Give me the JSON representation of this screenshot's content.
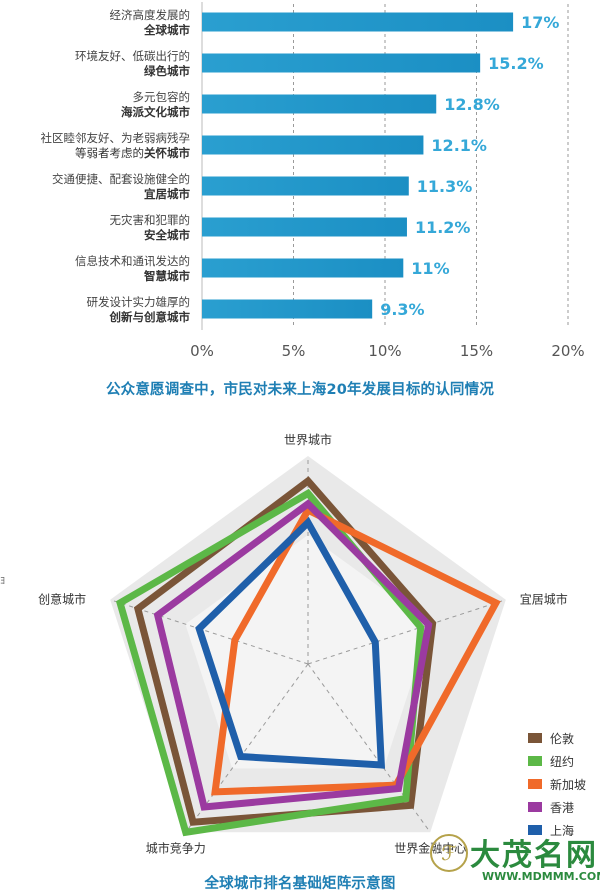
{
  "chart_data": [
    {
      "type": "bar",
      "orientation": "horizontal",
      "title": "公众意愿调查中，市民对未来上海20年发展目标的认同情况",
      "categories": [
        {
          "line1": "经济高度发展的",
          "line2": "全球城市"
        },
        {
          "line1": "环境友好、低碳出行的",
          "line2": "绿色城市"
        },
        {
          "line1": "多元包容的",
          "line2": "海派文化城市"
        },
        {
          "line1": "社区睦邻友好、为老弱病残孕",
          "line2_prefix": "等弱者考虑的",
          "line2": "关怀城市"
        },
        {
          "line1": "交通便捷、配套设施健全的",
          "line2": "宜居城市"
        },
        {
          "line1": "无灾害和犯罪的",
          "line2": "安全城市"
        },
        {
          "line1": "信息技术和通讯发达的",
          "line2": "智慧城市"
        },
        {
          "line1": "研发设计实力雄厚的",
          "line2": "创新与创意城市"
        }
      ],
      "values": [
        17,
        15.2,
        12.8,
        12.1,
        11.3,
        11.2,
        11,
        9.3
      ],
      "value_labels": [
        "17%",
        "15.2%",
        "12.8%",
        "12.1%",
        "11.3%",
        "11.2%",
        "11%",
        "9.3%"
      ],
      "x_ticks": [
        "0%",
        "5%",
        "10%",
        "15%",
        "20%"
      ],
      "xlim": [
        0,
        20
      ],
      "grid": "vertical dashed",
      "bar_color": "#1b8fc4",
      "label_color": "#35a8d8"
    },
    {
      "type": "radar",
      "title": "全球城市排名基础矩阵示意图",
      "axes": [
        "世界城市",
        "宜居城市",
        "世界金融中心",
        "城市竞争力",
        "创意城市"
      ],
      "rmax": 100,
      "series": [
        {
          "name": "伦敦",
          "color": "#7a5538",
          "values": [
            88,
            63,
            84,
            94,
            86
          ]
        },
        {
          "name": "纽约",
          "color": "#5cb847",
          "values": [
            82,
            57,
            80,
            100,
            95
          ]
        },
        {
          "name": "新加坡",
          "color": "#f06a2a",
          "values": [
            74,
            95,
            72,
            76,
            37
          ]
        },
        {
          "name": "香港",
          "color": "#9b3aa0",
          "values": [
            77,
            61,
            74,
            85,
            76
          ]
        },
        {
          "name": "上海",
          "color": "#1f5faa",
          "values": [
            68,
            34,
            60,
            55,
            55
          ]
        }
      ],
      "legend_position": "bottom-right",
      "background": "light gray pentagon with dashed spokes"
    }
  ],
  "radar_series_outer_color": "#e2358a",
  "watermark": {
    "name": "大茂名网",
    "url": "WWW.MDMMM.COM",
    "logo_glyph": "ℱ"
  }
}
